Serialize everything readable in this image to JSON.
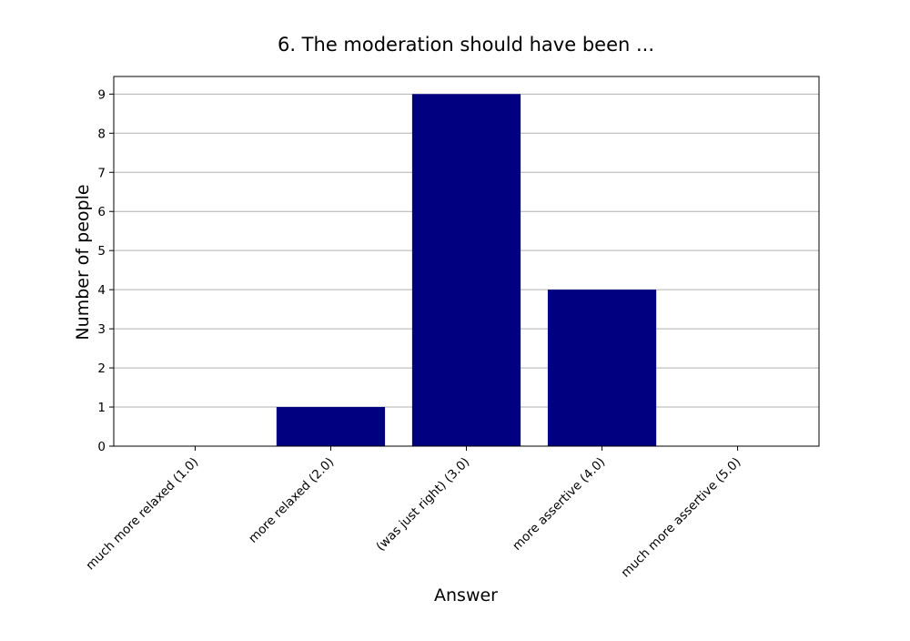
{
  "chart_data": {
    "type": "bar",
    "title": "6. The moderation should have been ...",
    "xlabel": "Answer",
    "ylabel": "Number of people",
    "categories": [
      "much more relaxed (1.0)",
      "more relaxed (2.0)",
      "(was just right) (3.0)",
      "more assertive (4.0)",
      "much more assertive (5.0)"
    ],
    "values": [
      0,
      1,
      9,
      4,
      0
    ],
    "ylim": [
      0,
      9.45
    ],
    "yticks": [
      0,
      1,
      2,
      3,
      4,
      5,
      6,
      7,
      8,
      9
    ],
    "grid": "horizontal",
    "bar_color": "#000080",
    "grid_color": "#b0b0b0"
  }
}
